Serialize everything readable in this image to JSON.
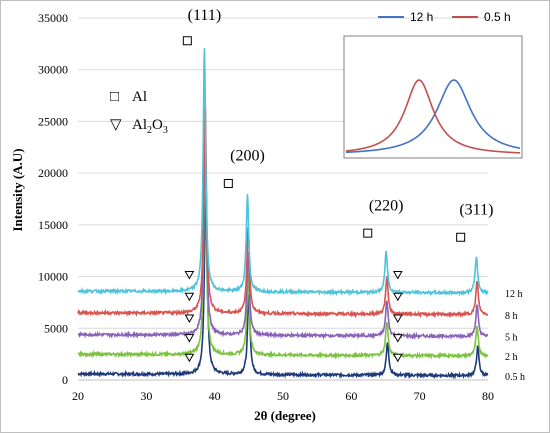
{
  "chart_data": {
    "type": "line",
    "xlabel": "2θ (degree)",
    "ylabel": "Intensity (A.U)",
    "xlim": [
      20,
      80
    ],
    "ylim": [
      0,
      35000
    ],
    "x_ticks": [
      "20",
      "30",
      "40",
      "50",
      "60",
      "70",
      "80"
    ],
    "y_ticks": [
      "0",
      "5000",
      "10000",
      "15000",
      "20000",
      "25000",
      "30000",
      "35000"
    ],
    "grid": "horizontal",
    "peak_labels": [
      {
        "text": "(111)",
        "x": 38.5,
        "y": 34800
      },
      {
        "text": "(200)",
        "x": 44.8,
        "y": 21200
      },
      {
        "text": "(220)",
        "x": 65.1,
        "y": 16400
      },
      {
        "text": "(311)",
        "x": 78.3,
        "y": 16000
      }
    ],
    "phase_legend": [
      {
        "symbol": "□",
        "text": "Al",
        "marker": "square"
      },
      {
        "symbol": "▽",
        "text": "Al2O3",
        "marker": "triangle"
      }
    ],
    "al_markers": [
      {
        "x": 36.0,
        "y": 32800
      },
      {
        "x": 42.0,
        "y": 19000
      },
      {
        "x": 62.4,
        "y": 14200
      },
      {
        "x": 76.0,
        "y": 13800
      }
    ],
    "al2o3_markers_x": [
      36.3,
      66.8
    ],
    "series": [
      {
        "name": "12 h",
        "color": "#4FC3D9",
        "baseline": 8600,
        "peaks": [
          [
            38.5,
            23600
          ],
          [
            44.8,
            9400
          ],
          [
            65.1,
            4000
          ],
          [
            78.3,
            3500
          ]
        ]
      },
      {
        "name": "8 h",
        "color": "#D9534F",
        "baseline": 6500,
        "peaks": [
          [
            38.6,
            21000
          ],
          [
            44.9,
            8500
          ],
          [
            65.2,
            3600
          ],
          [
            78.4,
            3200
          ]
        ]
      },
      {
        "name": "5 h",
        "color": "#8A63B8",
        "baseline": 4400,
        "peaks": [
          [
            38.6,
            20500
          ],
          [
            44.9,
            8200
          ],
          [
            65.2,
            3400
          ],
          [
            78.4,
            3000
          ]
        ]
      },
      {
        "name": "2 h",
        "color": "#7DC242",
        "baseline": 2500,
        "peaks": [
          [
            38.6,
            20000
          ],
          [
            44.9,
            8000
          ],
          [
            65.2,
            3300
          ],
          [
            78.4,
            2900
          ]
        ]
      },
      {
        "name": "0.5 h",
        "color": "#1F3A7A",
        "baseline": 600,
        "peaks": [
          [
            38.7,
            19500
          ],
          [
            45.0,
            7800
          ],
          [
            65.3,
            3200
          ],
          [
            78.5,
            2800
          ]
        ]
      }
    ],
    "inset": {
      "legend": [
        {
          "name": "12 h",
          "color": "#4472C4"
        },
        {
          "name": "0.5 h",
          "color": "#C0504D"
        }
      ],
      "curves": [
        {
          "name": "12 h",
          "color": "#4472C4",
          "center": 0.62,
          "width": 0.12
        },
        {
          "name": "0.5 h",
          "color": "#C0504D",
          "center": 0.42,
          "width": 0.1
        }
      ]
    }
  }
}
